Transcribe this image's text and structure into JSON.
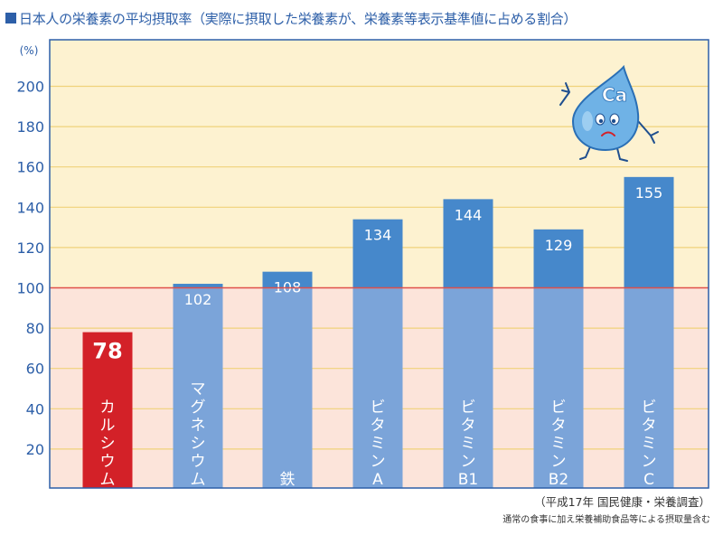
{
  "title_text": "日本人の栄養素の平均摂取率（実際に摂取した栄養素が、栄養素等表示基準値に占める割合）",
  "footnote": {
    "line1": "（平成17年 国民健康・栄養調査）",
    "line2": "通常の食事に加え栄養補助食品等による摂取量含む"
  },
  "mascot": {
    "label": "Ca"
  },
  "colors": {
    "upper_bg": "#fdf2d0",
    "lower_bg": "#fce4da",
    "bar_light": "#7ba4d9",
    "bar_dark": "#4688cb",
    "highlight": "#d32128",
    "frame": "#2d5fa8",
    "grid": "#f0d27a",
    "ref_line": "#e0504a"
  },
  "chart_data": {
    "type": "bar",
    "title": "日本人の栄養素の平均摂取率（実際に摂取した栄養素が、栄養素等表示基準値に占める割合）",
    "ylabel": "(%)",
    "ylim": [
      0,
      210
    ],
    "yticks": [
      20,
      40,
      60,
      80,
      100,
      120,
      140,
      160,
      180,
      200
    ],
    "reference_line": 100,
    "categories": [
      [
        "カ",
        "ル",
        "シ",
        "ウ",
        "ム"
      ],
      [
        "マ",
        "グ",
        "ネ",
        "シ",
        "ウ",
        "ム"
      ],
      [
        "鉄"
      ],
      [
        "ビ",
        "タ",
        "ミ",
        "ン",
        "A"
      ],
      [
        "ビ",
        "タ",
        "ミ",
        "ン",
        "B1"
      ],
      [
        "ビ",
        "タ",
        "ミ",
        "ン",
        "B2"
      ],
      [
        "ビ",
        "タ",
        "ミ",
        "ン",
        "C"
      ]
    ],
    "values": [
      78,
      102,
      108,
      134,
      144,
      129,
      155
    ],
    "highlight_index": 0,
    "grid": true
  }
}
